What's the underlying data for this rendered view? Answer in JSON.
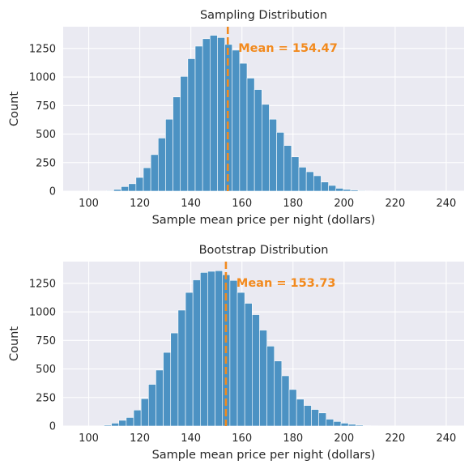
{
  "chart_data": [
    {
      "type": "bar",
      "title": "Sampling Distribution",
      "xlabel": "Sample mean price per night (dollars)",
      "ylabel": "Count",
      "xlim": [
        90,
        247
      ],
      "ylim": [
        0,
        1440
      ],
      "xticks": [
        100,
        120,
        140,
        160,
        180,
        200,
        220,
        240
      ],
      "yticks": [
        0,
        250,
        500,
        750,
        1000,
        1250
      ],
      "grid": true,
      "bar_color": "#4C92C3",
      "mean_line_color": "#F28A1E",
      "mean_value": 154.47,
      "annotation": "Mean = 154.47",
      "bins": {
        "start": 106.9,
        "width": 2.9,
        "values": [
          5,
          15,
          40,
          65,
          120,
          205,
          320,
          465,
          630,
          825,
          1005,
          1160,
          1270,
          1335,
          1365,
          1345,
          1285,
          1235,
          1120,
          990,
          890,
          760,
          630,
          515,
          400,
          300,
          210,
          170,
          135,
          80,
          50,
          25,
          15,
          10,
          5,
          2,
          1
        ]
      }
    },
    {
      "type": "bar",
      "title": "Bootstrap Distribution",
      "xlabel": "Sample mean price per night (dollars)",
      "ylabel": "Count",
      "xlim": [
        90,
        247
      ],
      "ylim": [
        0,
        1440
      ],
      "xticks": [
        100,
        120,
        140,
        160,
        180,
        200,
        220,
        240
      ],
      "yticks": [
        0,
        250,
        500,
        750,
        1000,
        1250
      ],
      "grid": true,
      "bar_color": "#4C92C3",
      "mean_line_color": "#F28A1E",
      "mean_value": 153.73,
      "annotation": "Mean = 153.73",
      "bins": {
        "start": 106.0,
        "width": 2.9,
        "values": [
          8,
          25,
          50,
          75,
          140,
          240,
          365,
          490,
          645,
          815,
          1015,
          1170,
          1280,
          1345,
          1355,
          1360,
          1325,
          1275,
          1170,
          1075,
          975,
          840,
          700,
          570,
          440,
          320,
          235,
          180,
          145,
          115,
          60,
          40,
          25,
          15,
          8,
          3,
          2
        ]
      }
    }
  ]
}
